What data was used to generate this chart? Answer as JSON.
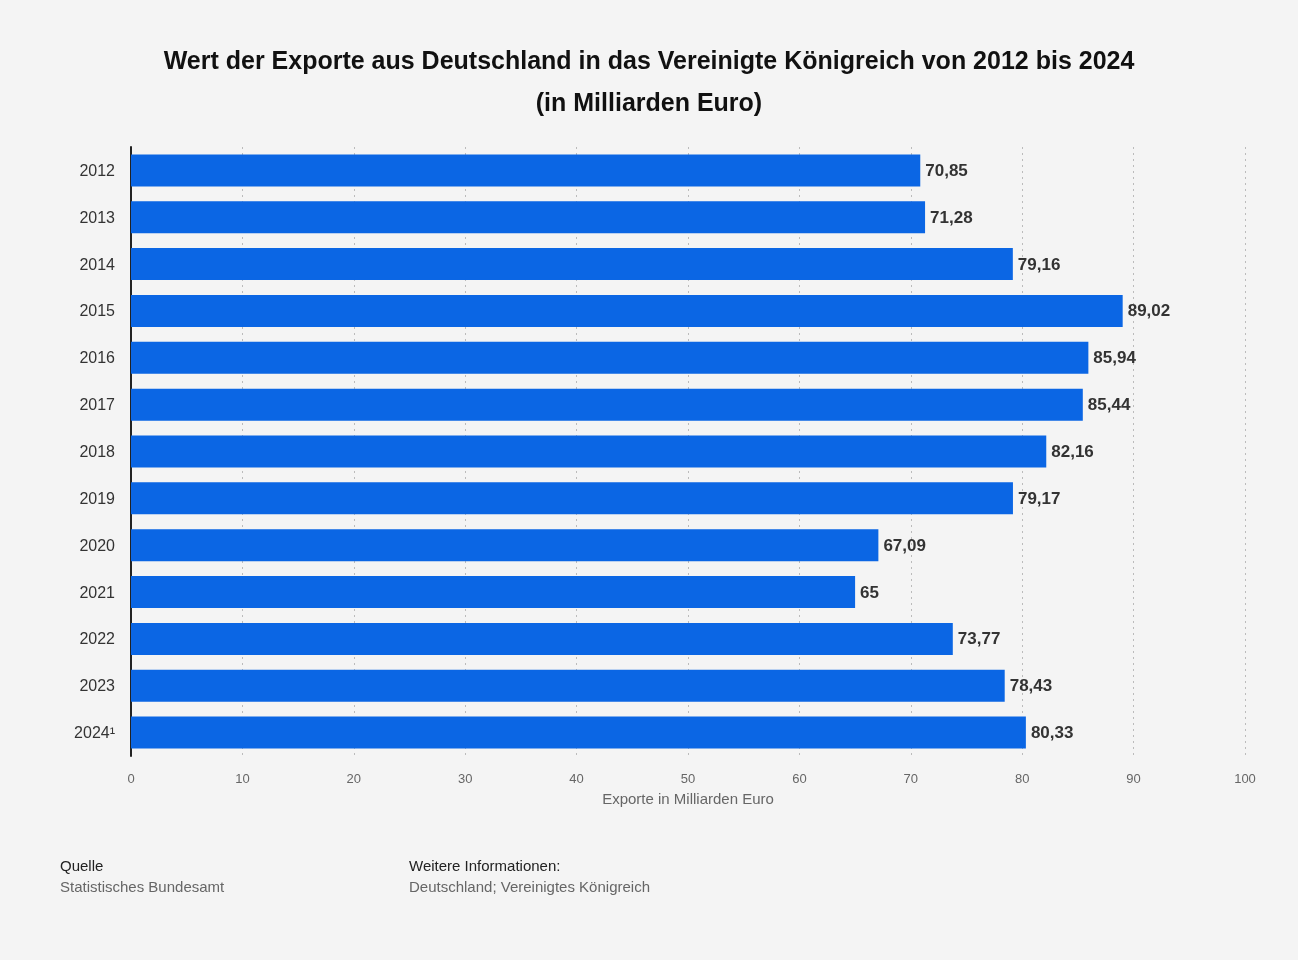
{
  "chart_data": {
    "type": "bar",
    "orientation": "horizontal",
    "title": "Wert der Exporte aus Deutschland in das Vereinigte Königreich von 2012 bis 2024",
    "subtitle": "(in Milliarden Euro)",
    "xlabel": "Exporte in Milliarden Euro",
    "categories": [
      "2012",
      "2013",
      "2014",
      "2015",
      "2016",
      "2017",
      "2018",
      "2019",
      "2020",
      "2021",
      "2022",
      "2023",
      "2024¹"
    ],
    "values": [
      70.85,
      71.28,
      79.16,
      89.02,
      85.94,
      85.44,
      82.16,
      79.17,
      67.09,
      65,
      73.77,
      78.43,
      80.33
    ],
    "value_labels": [
      "70,85",
      "71,28",
      "79,16",
      "89,02",
      "85,94",
      "85,44",
      "82,16",
      "79,17",
      "67,09",
      "65",
      "73,77",
      "78,43",
      "80,33"
    ],
    "color": "#0b66e4",
    "xlim": [
      0,
      100
    ],
    "xticks": [
      0,
      10,
      20,
      30,
      40,
      50,
      60,
      70,
      80,
      90,
      100
    ],
    "grid": "x",
    "annotations": [
      "Quelle",
      "Statistisches Bundesamt",
      "Weitere Informationen:",
      "Deutschland; Vereinigtes Königreich"
    ]
  }
}
